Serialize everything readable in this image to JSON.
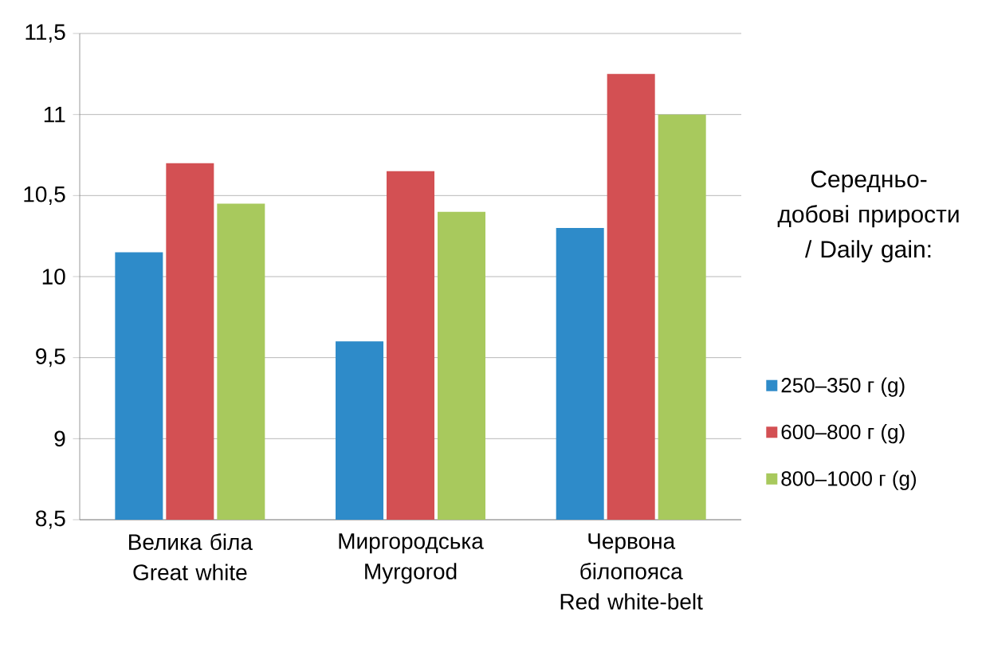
{
  "chart_data": {
    "type": "bar",
    "legend_title": "Середньо-добові прирости / Daily gain:",
    "categories": [
      "Велика біла Great white",
      "Миргородська Myrgorod",
      "Червона білопояса Red white-belt"
    ],
    "series": [
      {
        "name": "250–350 г (g)",
        "color": "#2e8bc9",
        "values": [
          10.15,
          9.6,
          10.3
        ]
      },
      {
        "name": "600–800 г (g)",
        "color": "#d35053",
        "values": [
          10.7,
          10.65,
          11.25
        ]
      },
      {
        "name": "800–1000 г (g)",
        "color": "#a8c95d",
        "values": [
          10.45,
          10.4,
          11.0
        ]
      }
    ],
    "ylim": [
      8.5,
      11.5
    ],
    "yticks": [
      {
        "value": 8.5,
        "label": "8,5"
      },
      9,
      {
        "value": 9.5,
        "label": "9,5"
      },
      10,
      {
        "value": 10.5,
        "label": "10,5"
      },
      11,
      {
        "value": 11.5,
        "label": "11,5"
      }
    ],
    "grid": "y",
    "legend": "right"
  }
}
